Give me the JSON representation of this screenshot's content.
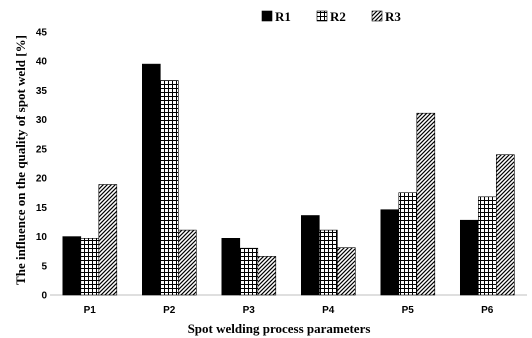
{
  "chart_data": {
    "type": "bar",
    "title": "",
    "xlabel": "Spot welding process parameters",
    "ylabel": "The influence on the quality of spot weld [%]",
    "categories": [
      "P1",
      "P2",
      "P3",
      "P4",
      "P5",
      "P6"
    ],
    "series": [
      {
        "name": "R1",
        "values": [
          10.0,
          39.5,
          9.7,
          13.6,
          14.6,
          12.8
        ]
      },
      {
        "name": "R2",
        "values": [
          9.7,
          36.7,
          8.0,
          11.1,
          17.5,
          16.8
        ]
      },
      {
        "name": "R3",
        "values": [
          18.9,
          11.1,
          6.6,
          8.1,
          31.1,
          24.0
        ]
      }
    ],
    "ylim": [
      0,
      45
    ],
    "yticks": [
      0,
      5,
      10,
      15,
      20,
      25,
      30,
      35,
      40,
      45
    ],
    "grid": false,
    "legend": "top-right",
    "series_styles": [
      {
        "pattern": "solid",
        "color": "#000000"
      },
      {
        "pattern": "grid",
        "color": "#000000"
      },
      {
        "pattern": "diagonal",
        "color": "#000000"
      }
    ]
  }
}
